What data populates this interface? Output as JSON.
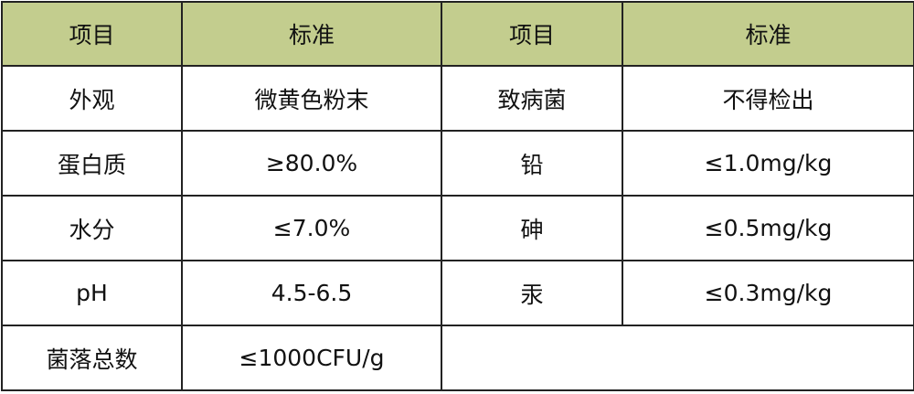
{
  "header_color": "#c3cd8e",
  "headers": [
    "项目",
    "标准",
    "项目",
    "标准"
  ],
  "rows": [
    [
      "外观",
      "微黄色粉末",
      "致病菌",
      "不得检出"
    ],
    [
      "蛋白质",
      "≥80.0%",
      "铅",
      "≤1.0mg/kg"
    ],
    [
      "水分",
      "≤7.0%",
      "砷",
      "≤0.5mg/kg"
    ],
    [
      "pH",
      "4.5-6.5",
      "汞",
      "≤0.3mg/kg"
    ]
  ],
  "last_row": [
    "菌落总数",
    "≤1000CFU/g"
  ]
}
